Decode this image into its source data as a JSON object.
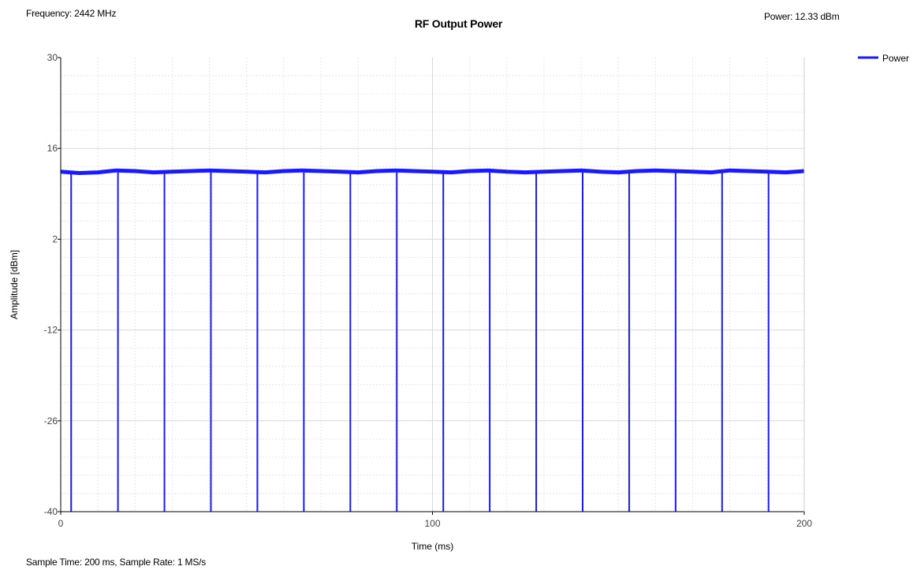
{
  "header": {
    "frequency": "Frequency: 2442 MHz",
    "power": "Power: 12.33 dBm"
  },
  "footer": {
    "sample_info": "Sample Time: 200 ms,  Sample Rate: 1 MS/s"
  },
  "colors": {
    "series": "#1a1aff",
    "axis": "#000000",
    "grid": "#e6e6e6"
  },
  "chart_data": {
    "type": "line",
    "title": "RF Output Power",
    "xlabel": "Time (ms)",
    "ylabel": "Amplitude [dBm]",
    "xlim": [
      0,
      200
    ],
    "ylim": [
      -40,
      30
    ],
    "x_ticks": [
      0,
      100,
      200
    ],
    "y_ticks": [
      30,
      16,
      2,
      -12,
      -26,
      -40
    ],
    "grid": true,
    "legend_position": "top-right",
    "series": [
      {
        "name": "Power",
        "color": "#1a1aff",
        "baseline_dbm": 12.3,
        "x": [
          0,
          5,
          10,
          15,
          20,
          25,
          30,
          35,
          40,
          45,
          50,
          55,
          60,
          65,
          70,
          75,
          80,
          85,
          90,
          95,
          100,
          105,
          110,
          115,
          120,
          125,
          130,
          135,
          140,
          145,
          150,
          155,
          160,
          165,
          170,
          175,
          180,
          185,
          190,
          195,
          200
        ],
        "y": [
          12.4,
          12.2,
          12.3,
          12.6,
          12.5,
          12.3,
          12.4,
          12.5,
          12.6,
          12.5,
          12.4,
          12.3,
          12.5,
          12.6,
          12.5,
          12.4,
          12.3,
          12.5,
          12.6,
          12.5,
          12.4,
          12.3,
          12.5,
          12.6,
          12.4,
          12.3,
          12.4,
          12.5,
          12.6,
          12.4,
          12.3,
          12.5,
          12.6,
          12.5,
          12.4,
          12.3,
          12.6,
          12.5,
          12.4,
          12.3,
          12.5
        ],
        "dropout_times_ms": [
          2.8,
          15.4,
          27.9,
          40.4,
          52.9,
          65.4,
          77.9,
          90.4,
          102.9,
          115.4,
          127.9,
          140.4,
          152.9,
          165.4,
          177.9,
          190.4
        ],
        "dropout_level_dbm": -40
      }
    ]
  }
}
